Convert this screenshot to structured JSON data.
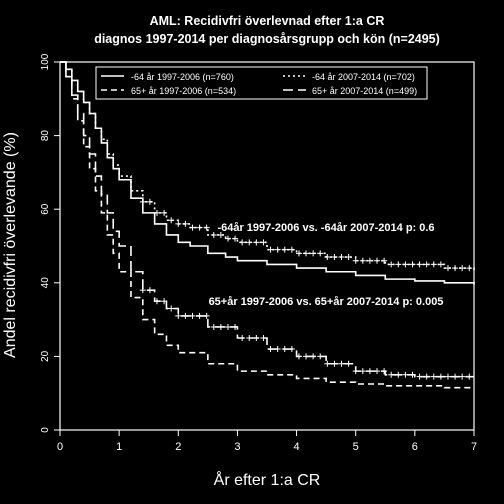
{
  "chart_data": {
    "type": "line",
    "title": "AML: Recidivfri överlevnad efter 1:a CR",
    "subtitle": "diagnos 1997-2014 per diagnosårsgrupp och kön (n=2495)",
    "xlabel": "År efter 1:a CR",
    "ylabel": "Andel recidivfri överlevande (%)",
    "xlim": [
      0,
      7
    ],
    "ylim": [
      0,
      100
    ],
    "xticks": [
      0,
      1,
      2,
      3,
      4,
      5,
      6,
      7
    ],
    "yticks": [
      0,
      20,
      40,
      60,
      80,
      100
    ],
    "grid": false,
    "legend_position": "top",
    "colors": {
      "background": "#000000",
      "foreground": "#ffffff"
    },
    "series": [
      {
        "name": "-64 år 1997-2006 (n=760)",
        "dash": "solid",
        "censor_marks": false,
        "x": [
          0,
          0.1,
          0.2,
          0.3,
          0.4,
          0.5,
          0.6,
          0.7,
          0.8,
          0.9,
          1.0,
          1.2,
          1.4,
          1.6,
          1.8,
          2.0,
          2.2,
          2.5,
          2.8,
          3.0,
          3.5,
          4.0,
          4.5,
          5.0,
          5.5,
          6.0,
          6.5,
          7.0
        ],
        "y": [
          100,
          98,
          95,
          92,
          89,
          86,
          82,
          78,
          74,
          71,
          68,
          63,
          59,
          56,
          53,
          51,
          50,
          48,
          47,
          46,
          45,
          44,
          43,
          42,
          41,
          40.5,
          40,
          39.5
        ]
      },
      {
        "name": "-64 år 2007-2014 (n=702)",
        "dash": "dotted",
        "censor_marks": true,
        "x": [
          0,
          0.1,
          0.2,
          0.3,
          0.4,
          0.5,
          0.6,
          0.7,
          0.8,
          0.9,
          1.0,
          1.2,
          1.4,
          1.6,
          1.8,
          2.0,
          2.2,
          2.5,
          2.8,
          3.0,
          3.5,
          4.0,
          4.5,
          5.0,
          5.5,
          6.0,
          6.5,
          7.0
        ],
        "y": [
          100,
          98,
          95,
          92,
          89,
          86,
          82,
          79,
          75,
          72,
          69,
          65,
          62,
          59,
          57,
          56,
          55,
          53,
          52,
          51,
          49,
          48,
          47,
          46,
          45,
          45,
          44,
          43
        ]
      },
      {
        "name": "65+ år 1997-2006 (n=534)",
        "dash": "dashed",
        "censor_marks": false,
        "x": [
          0,
          0.1,
          0.2,
          0.3,
          0.4,
          0.5,
          0.6,
          0.7,
          0.8,
          0.9,
          1.0,
          1.2,
          1.4,
          1.6,
          1.8,
          2.0,
          2.5,
          3.0,
          3.5,
          4.0,
          4.5,
          5.0,
          5.5,
          6.0,
          6.5,
          7.0
        ],
        "y": [
          100,
          96,
          90,
          84,
          77,
          71,
          65,
          59,
          53,
          48,
          43,
          36,
          30,
          26,
          23,
          21,
          18,
          16,
          15,
          14,
          13,
          12.5,
          12,
          12,
          11.5,
          11.5
        ]
      },
      {
        "name": "65+ år 2007-2014 (n=499)",
        "dash": "longdash",
        "censor_marks": true,
        "x": [
          0,
          0.1,
          0.2,
          0.3,
          0.4,
          0.5,
          0.6,
          0.7,
          0.8,
          0.9,
          1.0,
          1.2,
          1.4,
          1.6,
          1.8,
          2.0,
          2.5,
          3.0,
          3.5,
          4.0,
          4.5,
          5.0,
          5.5,
          6.0,
          6.5,
          7.0
        ],
        "y": [
          100,
          96,
          91,
          86,
          80,
          75,
          69,
          64,
          59,
          54,
          50,
          43,
          38,
          35,
          33,
          31,
          28,
          25,
          22,
          20,
          18,
          16,
          15,
          14.5,
          14.5,
          14.5
        ]
      }
    ],
    "annotations": [
      {
        "text": "-64år 1997-2006 vs. -64år 2007-2014 p: 0.6",
        "x": 4.5,
        "y": 55
      },
      {
        "text": "65+år 1997-2006 vs. 65+år 2007-2014 p: 0.005",
        "x": 4.5,
        "y": 35
      }
    ]
  }
}
